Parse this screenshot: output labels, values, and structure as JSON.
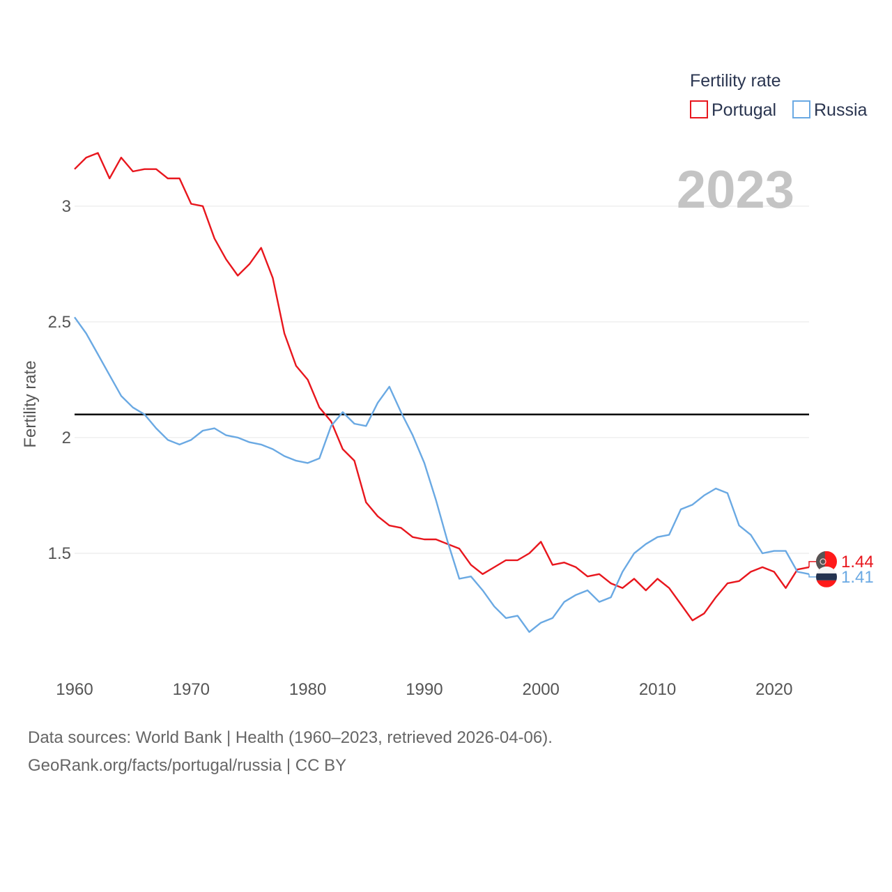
{
  "chart_data": {
    "type": "line",
    "legend_title": "Fertility rate",
    "ylabel": "Fertility rate",
    "xlabel": "",
    "year_display": "2023",
    "xlim": [
      1960,
      2023
    ],
    "ylim": [
      1.0,
      3.4
    ],
    "x_ticks": [
      1960,
      1970,
      1980,
      1990,
      2000,
      2010,
      2020
    ],
    "y_ticks": [
      1.5,
      2,
      2.5,
      3
    ],
    "y_tick_labels": [
      "1.5",
      "2",
      "2.5",
      "3"
    ],
    "reference_line": 2.1,
    "legend_position": "top-right",
    "x": [
      1960,
      1961,
      1962,
      1963,
      1964,
      1965,
      1966,
      1967,
      1968,
      1969,
      1970,
      1971,
      1972,
      1973,
      1974,
      1975,
      1976,
      1977,
      1978,
      1979,
      1980,
      1981,
      1982,
      1983,
      1984,
      1985,
      1986,
      1987,
      1988,
      1989,
      1990,
      1991,
      1992,
      1993,
      1994,
      1995,
      1996,
      1997,
      1998,
      1999,
      2000,
      2001,
      2002,
      2003,
      2004,
      2005,
      2006,
      2007,
      2008,
      2009,
      2010,
      2011,
      2012,
      2013,
      2014,
      2015,
      2016,
      2017,
      2018,
      2019,
      2020,
      2021,
      2022,
      2023
    ],
    "series": [
      {
        "name": "Portugal",
        "color": "#e8161d",
        "end_label": "1.44",
        "values": [
          3.16,
          3.21,
          3.23,
          3.12,
          3.21,
          3.15,
          3.16,
          3.16,
          3.12,
          3.12,
          3.01,
          3.0,
          2.86,
          2.77,
          2.7,
          2.75,
          2.82,
          2.69,
          2.45,
          2.31,
          2.25,
          2.13,
          2.07,
          1.95,
          1.9,
          1.72,
          1.66,
          1.62,
          1.61,
          1.57,
          1.56,
          1.56,
          1.54,
          1.52,
          1.45,
          1.41,
          1.44,
          1.47,
          1.47,
          1.5,
          1.55,
          1.45,
          1.46,
          1.44,
          1.4,
          1.41,
          1.37,
          1.35,
          1.39,
          1.34,
          1.39,
          1.35,
          1.28,
          1.21,
          1.24,
          1.31,
          1.37,
          1.38,
          1.42,
          1.44,
          1.42,
          1.35,
          1.43,
          1.44
        ]
      },
      {
        "name": "Russia",
        "color": "#6aa9e3",
        "end_label": "1.41",
        "values": [
          2.52,
          2.45,
          2.36,
          2.27,
          2.18,
          2.13,
          2.1,
          2.04,
          1.99,
          1.97,
          1.99,
          2.03,
          2.04,
          2.01,
          2.0,
          1.98,
          1.97,
          1.95,
          1.92,
          1.9,
          1.89,
          1.91,
          2.05,
          2.11,
          2.06,
          2.05,
          2.15,
          2.22,
          2.11,
          2.01,
          1.89,
          1.73,
          1.55,
          1.39,
          1.4,
          1.34,
          1.27,
          1.22,
          1.23,
          1.16,
          1.2,
          1.22,
          1.29,
          1.32,
          1.34,
          1.29,
          1.31,
          1.42,
          1.5,
          1.54,
          1.57,
          1.58,
          1.69,
          1.71,
          1.75,
          1.78,
          1.76,
          1.62,
          1.58,
          1.5,
          1.51,
          1.51,
          1.42,
          1.41
        ]
      }
    ]
  },
  "footer": {
    "line1": "Data sources: World Bank | Health (1960–2023, retrieved 2026-04-06).",
    "line2": "GeoRank.org/facts/portugal/russia | CC BY"
  }
}
